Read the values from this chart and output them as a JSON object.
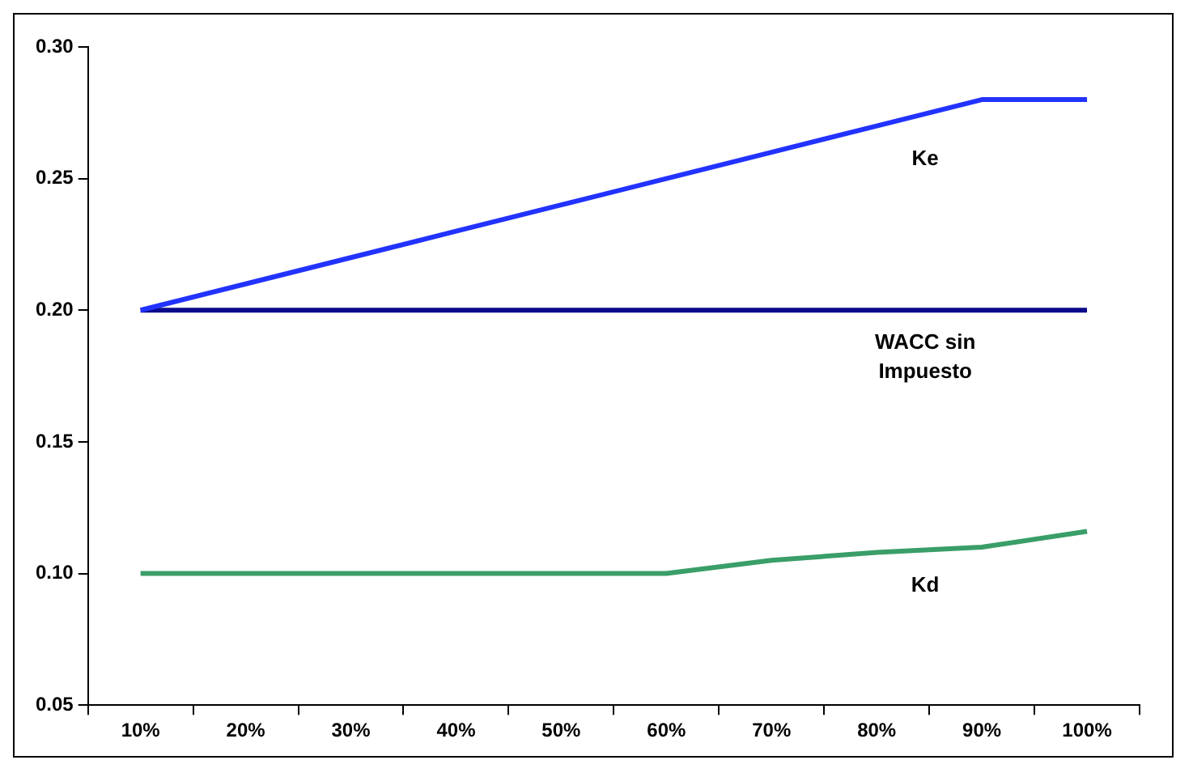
{
  "chart_data": {
    "type": "line",
    "categories": [
      "10%",
      "20%",
      "30%",
      "40%",
      "50%",
      "60%",
      "70%",
      "80%",
      "90%",
      "100%"
    ],
    "series": [
      {
        "name": "Ke",
        "color": "#2233ff",
        "values": [
          0.2,
          0.21,
          0.22,
          0.23,
          0.24,
          0.25,
          0.26,
          0.27,
          0.28,
          0.28
        ]
      },
      {
        "name": "WACC sin Impuesto",
        "color": "#0a0a8a",
        "values": [
          0.2,
          0.2,
          0.2,
          0.2,
          0.2,
          0.2,
          0.2,
          0.2,
          0.2,
          0.2
        ]
      },
      {
        "name": "Kd",
        "color": "#3a9e68",
        "values": [
          0.1,
          0.1,
          0.1,
          0.1,
          0.1,
          0.1,
          0.105,
          0.108,
          0.11,
          0.116
        ]
      }
    ],
    "ylim": [
      0.05,
      0.3
    ],
    "yticks": [
      {
        "value": 0.05,
        "label": "0.05"
      },
      {
        "value": 0.1,
        "label": "0.10"
      },
      {
        "value": 0.15,
        "label": "0.15"
      },
      {
        "value": 0.2,
        "label": "0.20"
      },
      {
        "value": 0.25,
        "label": "0.25"
      },
      {
        "value": 0.3,
        "label": "0.30"
      }
    ],
    "grid": false,
    "legend": false,
    "marker": "none",
    "line_style": "solid"
  }
}
